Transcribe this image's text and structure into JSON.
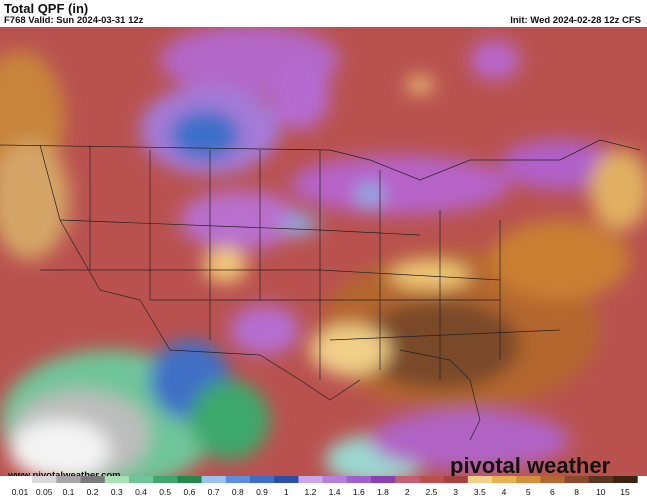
{
  "header": {
    "title": "Total QPF (in)",
    "valid": "F768 Valid: Sun 2024-03-31 12z",
    "init": "Init: Wed 2024-02-28 12z CFS"
  },
  "colorbar": {
    "labels": [
      "0.01",
      "0.05",
      "0.1",
      "0.2",
      "0.3",
      "0.4",
      "0.5",
      "0.6",
      "0.7",
      "0.8",
      "0.9",
      "1",
      "1.2",
      "1.4",
      "1.6",
      "1.8",
      "2",
      "2.5",
      "3",
      "3.5",
      "4",
      "5",
      "6",
      "8",
      "10",
      "15"
    ]
  },
  "footer": {
    "url": "www.pivotalweather.com",
    "brand": "pivotal weather"
  }
}
